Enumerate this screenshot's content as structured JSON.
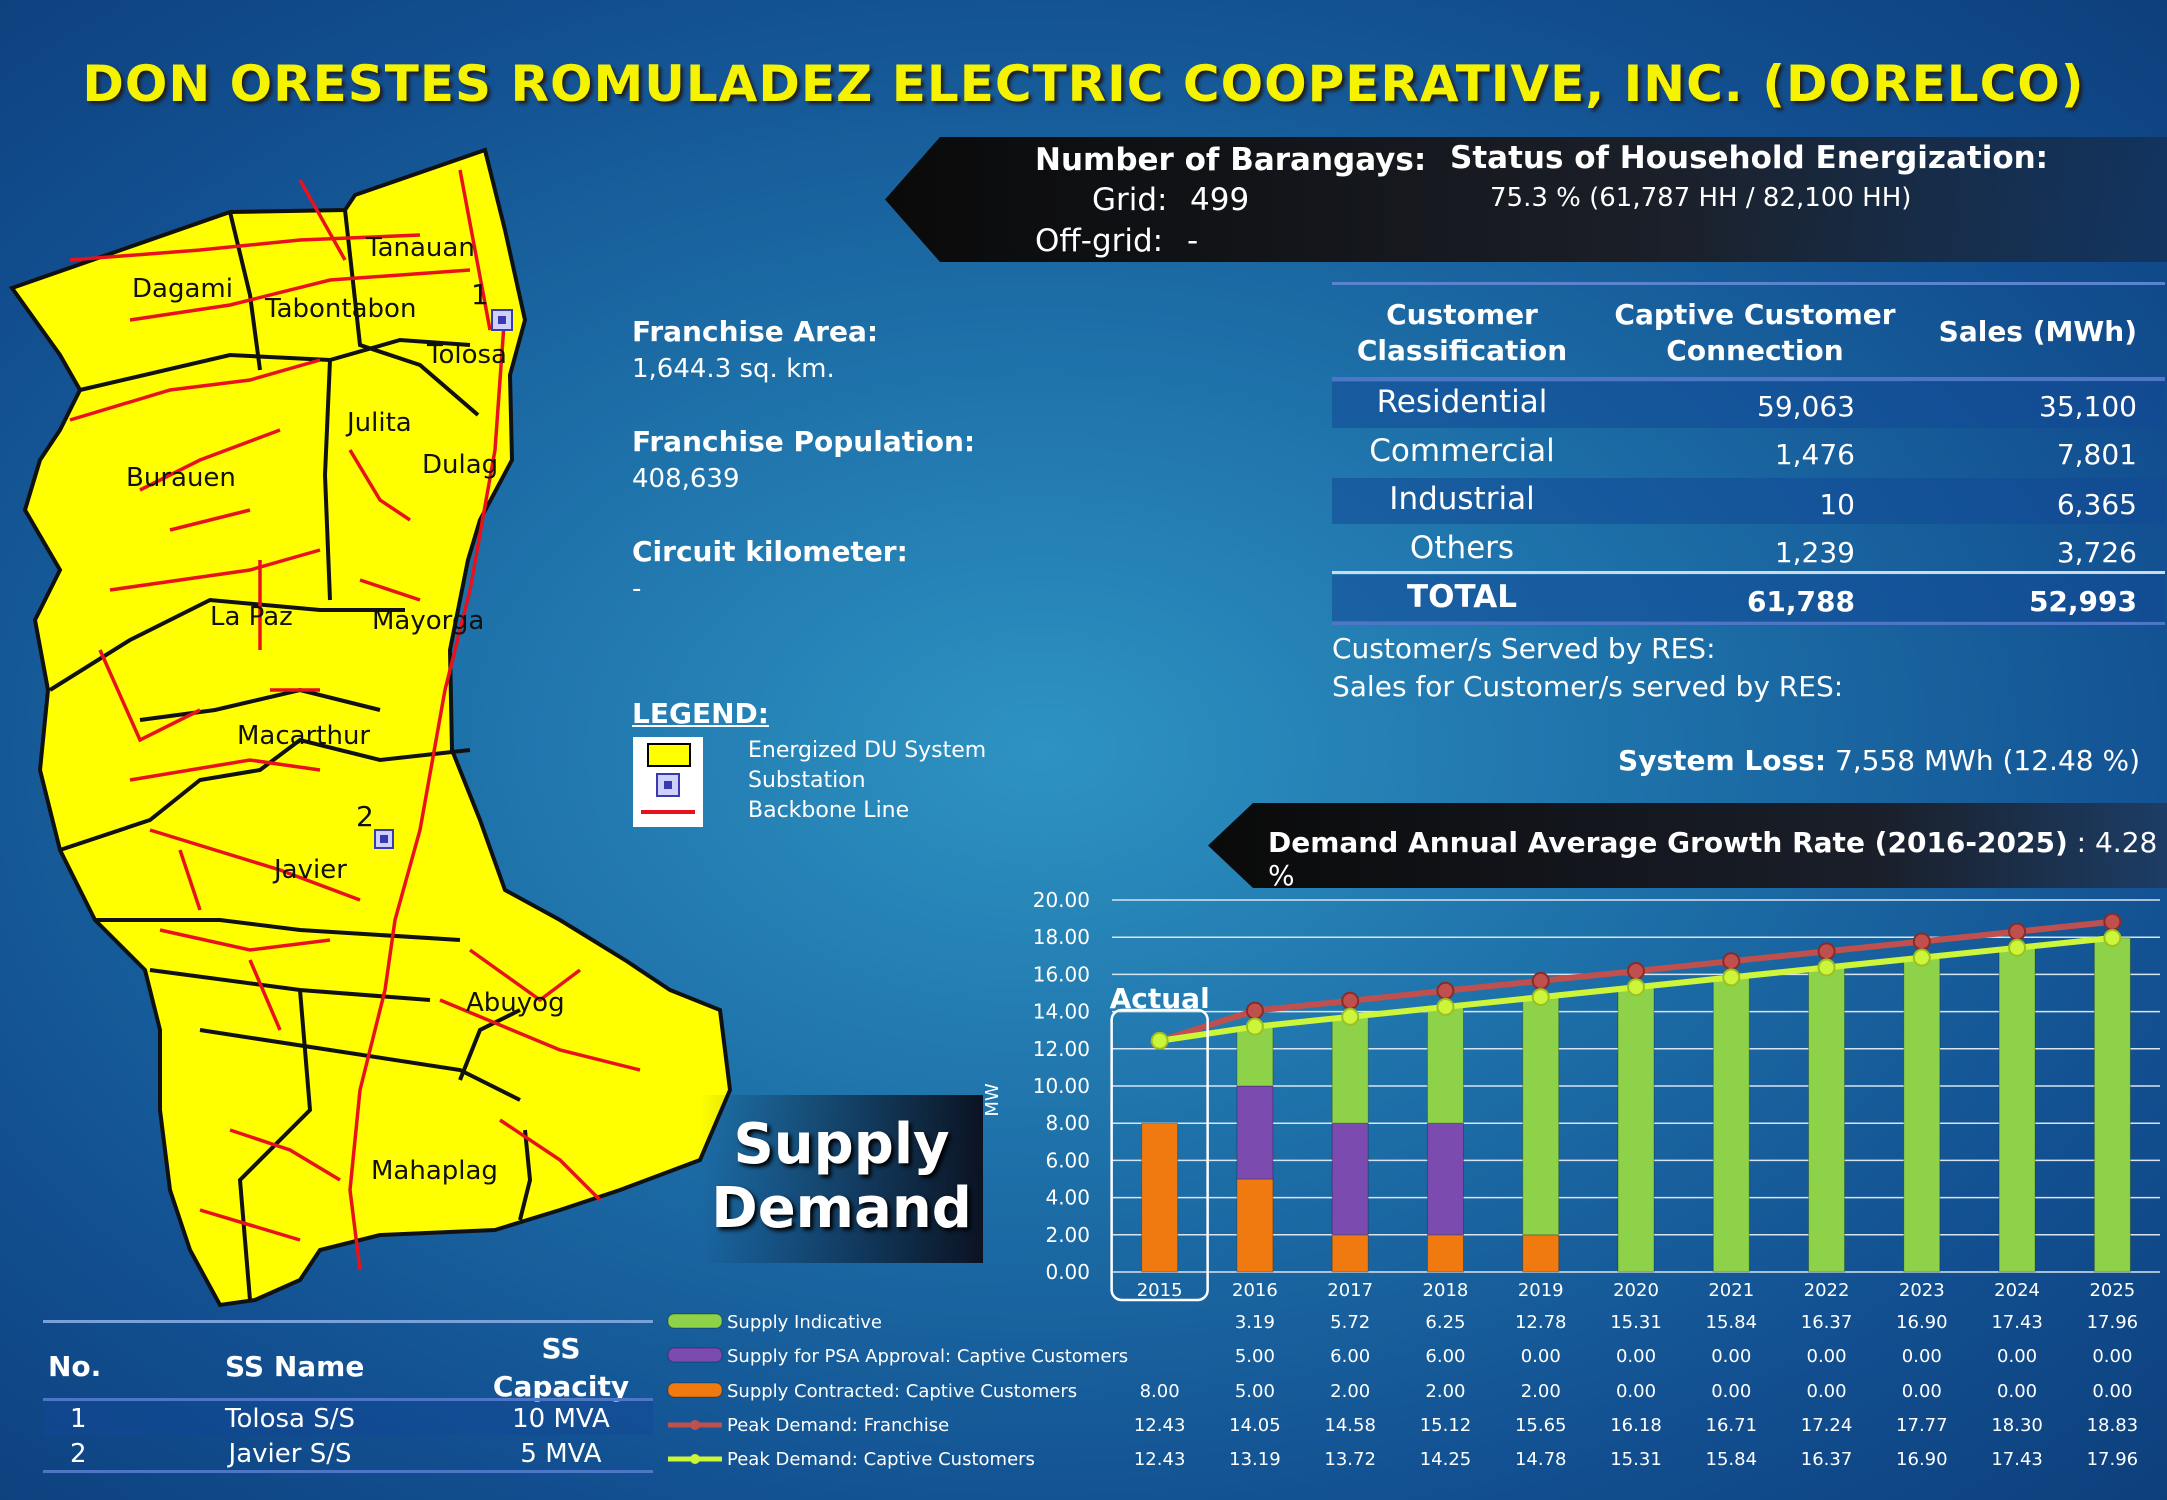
{
  "title": "DON ORESTES ROMULADEZ ELECTRIC COOPERATIVE, INC. (DORELCO)",
  "barangays": {
    "heading": "Number of Barangays:",
    "grid_label": "Grid:",
    "grid_value": "499",
    "offgrid_label": "Off-grid:",
    "offgrid_value": "-"
  },
  "energization": {
    "heading": "Status of Household Energization:",
    "value": "75.3 % (61,787 HH / 82,100 HH)"
  },
  "franchise": {
    "area_label": "Franchise Area:",
    "area_value": "1,644.3 sq. km.",
    "population_label": "Franchise Population:",
    "population_value": "408,639",
    "circuit_label": "Circuit kilometer:",
    "circuit_value": "-"
  },
  "legend": {
    "heading": "LEGEND:",
    "items": [
      "Energized DU System",
      "Substation",
      "Backbone Line"
    ]
  },
  "map": {
    "places": [
      "Dagami",
      "Tanauan",
      "Tabontabon",
      "Tolosa",
      "Julita",
      "Dulag",
      "Burauen",
      "La Paz",
      "Mayorga",
      "Macarthur",
      "Javier",
      "Abuyog",
      "Mahaplag"
    ],
    "substation_numbers": [
      "1",
      "2"
    ],
    "colors": {
      "fill": "#ffff00",
      "line": "#e8121c",
      "substation": "#5a5ad8"
    }
  },
  "customer_table": {
    "headers": [
      "Customer Classification",
      "Captive Customer Connection",
      "Sales (MWh)"
    ],
    "rows": [
      [
        "Residential",
        "59,063",
        "35,100"
      ],
      [
        "Commercial",
        "1,476",
        "7,801"
      ],
      [
        "Industrial",
        "10",
        "6,365"
      ],
      [
        "Others",
        "1,239",
        "3,726"
      ]
    ],
    "total": [
      "TOTAL",
      "61,788",
      "52,993"
    ]
  },
  "res": {
    "served": "Customer/s Served by RES:",
    "sales": "Sales for Customer/s served by RES:"
  },
  "system_loss": {
    "label": "System Loss:",
    "value": "7,558 MWh (12.48 %)"
  },
  "demand_growth": {
    "label": "Demand Annual Average Growth Rate (2016-2025)",
    "value": ": 4.28 %"
  },
  "supply_demand_label": [
    "Supply",
    "Demand"
  ],
  "ss_table": {
    "headers": [
      "No.",
      "SS Name",
      "SS Capacity"
    ],
    "rows": [
      [
        "1",
        "Tolosa S/S",
        "10 MVA"
      ],
      [
        "2",
        "Javier S/S",
        "5 MVA"
      ]
    ]
  },
  "chart_data": {
    "type": "bar",
    "ylabel": "MW",
    "ylim": [
      0,
      20
    ],
    "yticks": [
      "0.00",
      "2.00",
      "4.00",
      "6.00",
      "8.00",
      "10.00",
      "12.00",
      "14.00",
      "16.00",
      "18.00",
      "20.00"
    ],
    "categories": [
      "2015",
      "2016",
      "2017",
      "2018",
      "2019",
      "2020",
      "2021",
      "2022",
      "2023",
      "2024",
      "2025"
    ],
    "annotation": "Actual",
    "stacked_series": [
      {
        "name": "Supply Contracted:  Captive Customers",
        "color": "#f07a10",
        "values": [
          8.0,
          5.0,
          2.0,
          2.0,
          2.0,
          0.0,
          0.0,
          0.0,
          0.0,
          0.0,
          0.0
        ],
        "labels": [
          "8.00",
          "5.00",
          "2.00",
          "2.00",
          "2.00",
          "0.00",
          "0.00",
          "0.00",
          "0.00",
          "0.00",
          "0.00"
        ]
      },
      {
        "name": "Supply for PSA Approval:  Captive Customers",
        "color": "#7b4bb0",
        "values": [
          0,
          5.0,
          6.0,
          6.0,
          0.0,
          0.0,
          0.0,
          0.0,
          0.0,
          0.0,
          0.0
        ],
        "labels": [
          "",
          "5.00",
          "6.00",
          "6.00",
          "0.00",
          "0.00",
          "0.00",
          "0.00",
          "0.00",
          "0.00",
          "0.00"
        ]
      },
      {
        "name": "Supply Indicative",
        "color": "#8ed24a",
        "values": [
          0,
          3.19,
          5.72,
          6.25,
          12.78,
          15.31,
          15.84,
          16.37,
          16.9,
          17.43,
          17.96
        ],
        "labels": [
          "",
          "3.19",
          "5.72",
          "6.25",
          "12.78",
          "15.31",
          "15.84",
          "16.37",
          "16.90",
          "17.43",
          "17.96"
        ]
      }
    ],
    "line_series": [
      {
        "name": "Peak Demand:  Franchise",
        "color": "#c0504d",
        "values": [
          12.43,
          14.05,
          14.58,
          15.12,
          15.65,
          16.18,
          16.71,
          17.24,
          17.77,
          18.3,
          18.83
        ],
        "labels": [
          "12.43",
          "14.05",
          "14.58",
          "15.12",
          "15.65",
          "16.18",
          "16.71",
          "17.24",
          "17.77",
          "18.30",
          "18.83"
        ]
      },
      {
        "name": "Peak Demand:  Captive Customers",
        "color": "#cdf53a",
        "values": [
          12.43,
          13.19,
          13.72,
          14.25,
          14.78,
          15.31,
          15.84,
          16.37,
          16.9,
          17.43,
          17.96
        ],
        "labels": [
          "12.43",
          "13.19",
          "13.72",
          "14.25",
          "14.78",
          "15.31",
          "15.84",
          "16.37",
          "16.90",
          "17.43",
          "17.96"
        ]
      }
    ],
    "table_row_order": [
      "Supply Indicative",
      "Supply for PSA Approval:  Captive Customers",
      "Supply Contracted:  Captive Customers",
      "Peak Demand:  Franchise",
      "Peak Demand:  Captive Customers"
    ]
  }
}
